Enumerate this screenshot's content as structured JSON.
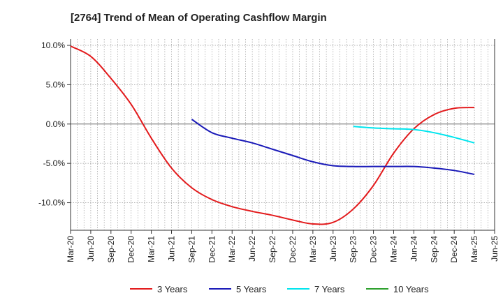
{
  "chart_data": {
    "type": "line",
    "title": "[2764]  Trend of Mean of Operating Cashflow Margin",
    "xlabel": "",
    "ylabel": "",
    "ylim": [
      -13.5,
      10.8
    ],
    "yticks": [
      10,
      5,
      0,
      -5,
      -10
    ],
    "ytick_labels": [
      "10.0%",
      "5.0%",
      "0.0%",
      "-5.0%",
      "-10.0%"
    ],
    "xtick_labels": [
      "Mar-20",
      "Jun-20",
      "Sep-20",
      "Dec-20",
      "Mar-21",
      "Jun-21",
      "Sep-21",
      "Dec-21",
      "Mar-22",
      "Jun-22",
      "Sep-22",
      "Dec-22",
      "Mar-23",
      "Jun-23",
      "Sep-23",
      "Dec-23",
      "Mar-24",
      "Jun-24",
      "Sep-24",
      "Dec-24",
      "Mar-25",
      "Jun-25"
    ],
    "grid": "dotted vertical and horizontal",
    "legend_position": "bottom",
    "series": [
      {
        "name": "3 Years",
        "color": "#e31a1c",
        "x": [
          "Mar-20",
          "Jun-20",
          "Sep-20",
          "Dec-20",
          "Mar-21",
          "Jun-21",
          "Sep-21",
          "Dec-21",
          "Mar-22",
          "Jun-22",
          "Sep-22",
          "Dec-22",
          "Mar-23",
          "Jun-23",
          "Sep-23",
          "Dec-23",
          "Mar-24",
          "Jun-24",
          "Sep-24",
          "Dec-24",
          "Mar-25"
        ],
        "values": [
          9.9,
          8.6,
          5.8,
          2.5,
          -1.8,
          -5.6,
          -8.1,
          -9.6,
          -10.5,
          -11.1,
          -11.6,
          -12.2,
          -12.7,
          -12.5,
          -10.8,
          -7.8,
          -3.7,
          -0.6,
          1.2,
          2.0,
          2.1
        ]
      },
      {
        "name": "5 Years",
        "color": "#1a1ab8",
        "x": [
          "Sep-21",
          "Dec-21",
          "Mar-22",
          "Jun-22",
          "Sep-22",
          "Dec-22",
          "Mar-23",
          "Jun-23",
          "Sep-23",
          "Dec-23",
          "Mar-24",
          "Jun-24",
          "Sep-24",
          "Dec-24",
          "Mar-25"
        ],
        "values": [
          0.6,
          -1.1,
          -1.8,
          -2.4,
          -3.2,
          -4.0,
          -4.8,
          -5.3,
          -5.4,
          -5.4,
          -5.4,
          -5.4,
          -5.6,
          -5.9,
          -6.4
        ]
      },
      {
        "name": "7 Years",
        "color": "#00e5ee",
        "x": [
          "Sep-23",
          "Dec-23",
          "Mar-24",
          "Jun-24",
          "Sep-24",
          "Dec-24",
          "Mar-25"
        ],
        "values": [
          -0.3,
          -0.5,
          -0.6,
          -0.7,
          -1.1,
          -1.7,
          -2.4
        ]
      },
      {
        "name": "10 Years",
        "color": "#2ca02c",
        "x": [],
        "values": []
      }
    ]
  }
}
